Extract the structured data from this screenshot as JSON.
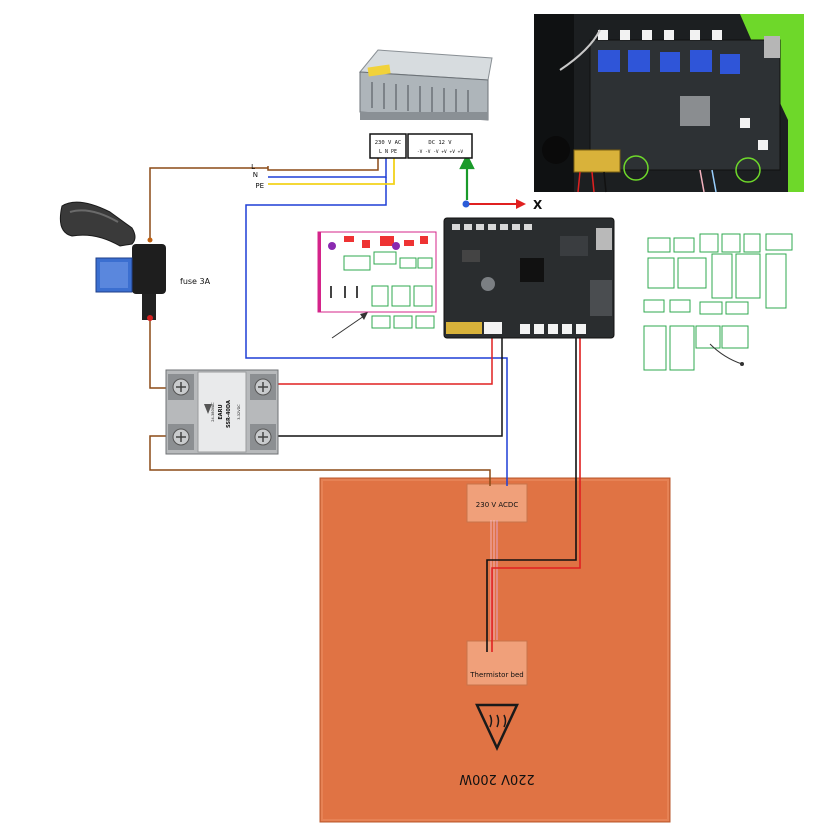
{
  "power_supply": {
    "input_label": "230 V AC",
    "input_terminals": "L  N  PE",
    "output_label": "DC 12 V",
    "output_terminals": "-V -V -V +V +V +V"
  },
  "mains_lines": {
    "l": "L",
    "n": "N",
    "pe": "PE"
  },
  "fuse": {
    "label": "fuse 3A"
  },
  "ssr": {
    "brand": "EARU",
    "model": "SSR-40DA",
    "load_rating": "24-380VAC",
    "input_rating": "3-32VDC"
  },
  "board": {
    "axis_label": "X"
  },
  "heat_bed": {
    "power_label": "230 V ACDC",
    "thermistor_label": "Thermistor bed",
    "rating_label": "220V 200W"
  },
  "colors": {
    "wire_brown": "#8b4a16",
    "wire_blue": "#1f3fd6",
    "wire_yellow": "#f2d21b",
    "wire_red": "#e02020",
    "wire_black": "#111111",
    "wire_green": "#1a9a2a",
    "bed": "#e07344",
    "pinout_green": "#2fa84f",
    "pinout_magenta": "#d4248a"
  }
}
